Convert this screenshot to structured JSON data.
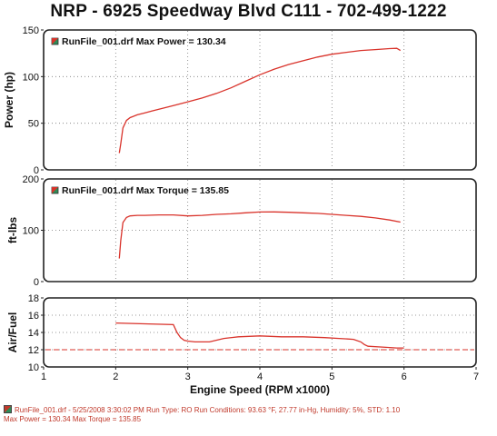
{
  "title": "NRP - 6925 Speedway Blvd C111 - 702-499-1222",
  "colors": {
    "line": "#d9332b",
    "frame": "#222222",
    "grid": "#7a7a7a",
    "ref": "#d9332b"
  },
  "chart_data": [
    {
      "type": "line",
      "ylabel": "Power (hp)",
      "xlim": [
        1,
        7
      ],
      "ylim": [
        0,
        150
      ],
      "yticks": [
        0,
        50,
        100,
        150
      ],
      "legend": "RunFile_001.drf Max Power = 130.34",
      "legend_position": "top-left",
      "grid": true,
      "series": [
        {
          "name": "RunFile_001.drf",
          "x": [
            2.05,
            2.07,
            2.1,
            2.15,
            2.2,
            2.3,
            2.4,
            2.5,
            2.6,
            2.7,
            2.8,
            3.0,
            3.2,
            3.4,
            3.6,
            3.8,
            4.0,
            4.2,
            4.4,
            4.6,
            4.8,
            5.0,
            5.2,
            5.4,
            5.6,
            5.8,
            5.9,
            5.95
          ],
          "y": [
            18,
            28,
            45,
            53,
            56,
            59,
            61,
            63,
            65,
            67,
            69,
            73,
            77,
            82,
            88,
            95,
            102,
            108,
            113,
            117,
            121,
            124,
            126,
            128,
            129,
            130,
            130.3,
            128
          ]
        }
      ]
    },
    {
      "type": "line",
      "ylabel": "ft-lbs",
      "xlim": [
        1,
        7
      ],
      "ylim": [
        0,
        200
      ],
      "yticks": [
        0,
        100,
        200
      ],
      "legend": "RunFile_001.drf Max Torque = 135.85",
      "legend_position": "top-left",
      "grid": true,
      "series": [
        {
          "name": "RunFile_001.drf",
          "x": [
            2.05,
            2.07,
            2.1,
            2.15,
            2.2,
            2.3,
            2.4,
            2.6,
            2.8,
            3.0,
            3.2,
            3.4,
            3.6,
            3.8,
            4.0,
            4.2,
            4.4,
            4.6,
            4.8,
            5.0,
            5.2,
            5.4,
            5.6,
            5.8,
            5.95
          ],
          "y": [
            45,
            80,
            115,
            125,
            128,
            129,
            129,
            130,
            130,
            128,
            129,
            131,
            132,
            134,
            135.5,
            135.8,
            135,
            134,
            133,
            131,
            129,
            127,
            124,
            120,
            116
          ]
        }
      ]
    },
    {
      "type": "line",
      "ylabel": "Air/Fuel",
      "xlabel": "Engine Speed (RPM x1000)",
      "xlim": [
        1,
        7
      ],
      "ylim": [
        10,
        18
      ],
      "yticks": [
        10,
        12,
        14,
        16,
        18
      ],
      "xticks": [
        1,
        2,
        3,
        4,
        5,
        6,
        7
      ],
      "reference_line": 12,
      "grid": true,
      "series": [
        {
          "name": "RunFile_001.drf",
          "x": [
            2.0,
            2.4,
            2.8,
            2.85,
            2.9,
            2.95,
            3.0,
            3.1,
            3.3,
            3.5,
            3.7,
            4.0,
            4.3,
            4.6,
            4.9,
            5.1,
            5.3,
            5.4,
            5.45,
            5.5,
            5.7,
            5.9,
            6.0
          ],
          "y": [
            15.1,
            15.0,
            14.9,
            14.0,
            13.4,
            13.1,
            13.0,
            12.9,
            12.9,
            13.3,
            13.5,
            13.6,
            13.5,
            13.5,
            13.4,
            13.3,
            13.2,
            12.9,
            12.6,
            12.4,
            12.3,
            12.2,
            12.2
          ]
        }
      ]
    }
  ],
  "footer": {
    "line1": "RunFile_001.drf - 5/25/2008 3:30:02 PM  Run Type: RO  Run Conditions: 93.63 °F, 27.77 in-Hg,  Humidity:  5%, STD: 1.10",
    "line2": "Max Power = 130.34  Max Torque = 135.85"
  }
}
